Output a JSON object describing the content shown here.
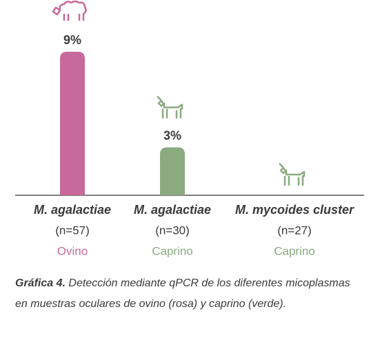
{
  "chart_data": {
    "type": "bar",
    "categories": [
      "M. agalactiae",
      "M. agalactiae",
      "M. mycoides cluster"
    ],
    "sample_sizes": [
      "(n=57)",
      "(n=30)",
      "(n=27)"
    ],
    "species": [
      "Ovino",
      "Caprino",
      "Caprino"
    ],
    "values": [
      9,
      3,
      0
    ],
    "value_labels": [
      "9%",
      "3%",
      null
    ],
    "colors": [
      "#c8699b",
      "#8aaa80",
      "#8aaa80"
    ],
    "ylim": [
      0,
      9
    ]
  },
  "caption_label": "Gráfica 4.",
  "caption": "Detección mediante qPCR de los diferentes micoplasmas en muestras oculares de ovino (rosa) y caprino (verde)."
}
